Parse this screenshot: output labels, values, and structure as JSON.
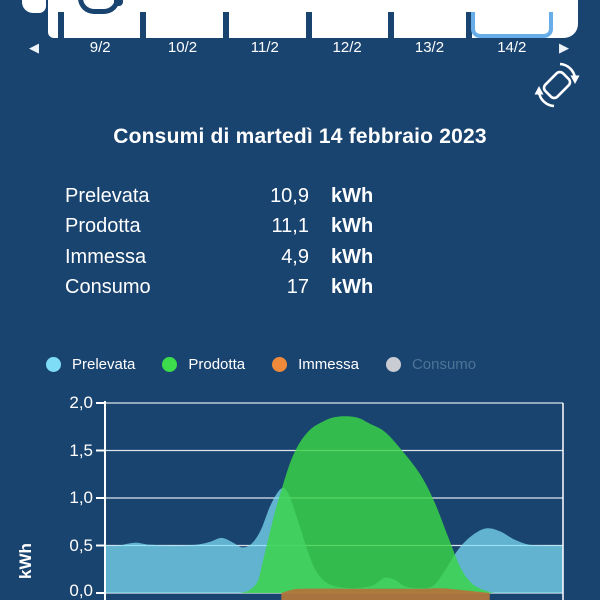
{
  "colors": {
    "background": "#1a4470",
    "slider_highlight": "#66ade9",
    "prelevata": "#7fdcf7",
    "prodotta": "#3cdc4c",
    "immessa": "#ee8a39",
    "consumo": "#c9ccd2"
  },
  "date_nav": {
    "days": [
      "9/2",
      "10/2",
      "11/2",
      "12/2",
      "13/2",
      "14/2"
    ],
    "selected_day": "14/2",
    "prev_arrow": "◀",
    "next_arrow": "▶"
  },
  "icons": {
    "rotate_device": "rotate-phone"
  },
  "header": {
    "title": "Consumi di martedì 14 febbraio 2023"
  },
  "summary": {
    "rows": [
      {
        "label": "Prelevata",
        "value": "10,9",
        "unit": "kWh"
      },
      {
        "label": "Prodotta",
        "value": "11,1",
        "unit": "kWh"
      },
      {
        "label": "Immessa",
        "value": "4,9",
        "unit": "kWh"
      },
      {
        "label": "Consumo",
        "value": "17",
        "unit": "kWh"
      }
    ]
  },
  "legend": {
    "items": [
      {
        "label": "Prelevata",
        "color": "#7fdcf7",
        "active": true
      },
      {
        "label": "Prodotta",
        "color": "#3cdc4c",
        "active": true
      },
      {
        "label": "Immessa",
        "color": "#ee8a39",
        "active": true
      },
      {
        "label": "Consumo",
        "color": "#c9ccd2",
        "active": false
      }
    ]
  },
  "chart_data": {
    "type": "area",
    "ylabel": "kWh",
    "yticks": [
      "2,0",
      "1,5",
      "1,0",
      "0,5",
      "0,0"
    ],
    "ylim": [
      0,
      2
    ],
    "grid": true,
    "x_axis": "time of day, fraction 0–1 of plotted range (hour labels cut off at bottom of screenshot)",
    "hidden_series": [
      "Consumo"
    ],
    "series": [
      {
        "name": "Prelevata",
        "fill": "rgba(125,222,245,0.72)",
        "points": [
          [
            0,
            0.5
          ],
          [
            0.03,
            0.5
          ],
          [
            0.065,
            0.53
          ],
          [
            0.095,
            0.51
          ],
          [
            0.15,
            0.5
          ],
          [
            0.2,
            0.51
          ],
          [
            0.23,
            0.54
          ],
          [
            0.255,
            0.58
          ],
          [
            0.28,
            0.53
          ],
          [
            0.3,
            0.48
          ],
          [
            0.32,
            0.52
          ],
          [
            0.34,
            0.66
          ],
          [
            0.362,
            0.93
          ],
          [
            0.385,
            1.1
          ],
          [
            0.402,
            1.03
          ],
          [
            0.422,
            0.75
          ],
          [
            0.442,
            0.45
          ],
          [
            0.462,
            0.22
          ],
          [
            0.487,
            0.1
          ],
          [
            0.515,
            0.06
          ],
          [
            0.55,
            0.05
          ],
          [
            0.585,
            0.08
          ],
          [
            0.61,
            0.16
          ],
          [
            0.632,
            0.14
          ],
          [
            0.655,
            0.07
          ],
          [
            0.685,
            0.05
          ],
          [
            0.715,
            0.07
          ],
          [
            0.74,
            0.22
          ],
          [
            0.77,
            0.45
          ],
          [
            0.8,
            0.6
          ],
          [
            0.832,
            0.68
          ],
          [
            0.862,
            0.65
          ],
          [
            0.895,
            0.56
          ],
          [
            0.925,
            0.51
          ],
          [
            0.96,
            0.5
          ],
          [
            1,
            0.5
          ]
        ]
      },
      {
        "name": "Prodotta",
        "fill": "rgba(58,214,70,0.82)",
        "points": [
          [
            0.295,
            0
          ],
          [
            0.315,
            0.03
          ],
          [
            0.333,
            0.12
          ],
          [
            0.343,
            0.3
          ],
          [
            0.358,
            0.6
          ],
          [
            0.371,
            0.85
          ],
          [
            0.385,
            1.08
          ],
          [
            0.405,
            1.38
          ],
          [
            0.425,
            1.58
          ],
          [
            0.448,
            1.72
          ],
          [
            0.474,
            1.8
          ],
          [
            0.5,
            1.85
          ],
          [
            0.53,
            1.86
          ],
          [
            0.555,
            1.84
          ],
          [
            0.575,
            1.79
          ],
          [
            0.61,
            1.7
          ],
          [
            0.645,
            1.52
          ],
          [
            0.688,
            1.25
          ],
          [
            0.72,
            0.95
          ],
          [
            0.75,
            0.58
          ],
          [
            0.775,
            0.28
          ],
          [
            0.797,
            0.12
          ],
          [
            0.82,
            0.045
          ],
          [
            0.85,
            0
          ]
        ]
      },
      {
        "name": "Immessa",
        "fill": "rgba(177,118,60,0.95)",
        "points": [
          [
            0.385,
            0
          ],
          [
            0.405,
            0.03
          ],
          [
            0.43,
            0.045
          ],
          [
            0.55,
            0.045
          ],
          [
            0.65,
            0.045
          ],
          [
            0.7,
            0.045
          ],
          [
            0.73,
            0.05
          ],
          [
            0.762,
            0.04
          ],
          [
            0.792,
            0.025
          ],
          [
            0.818,
            0.012
          ],
          [
            0.84,
            0
          ]
        ]
      }
    ]
  }
}
